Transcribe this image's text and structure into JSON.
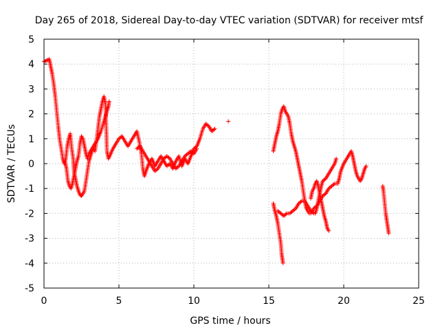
{
  "chart_data": {
    "type": "scatter",
    "title": "Day 265 of 2018, Sidereal Day-to-day VTEC variation (SDTVAR) for receiver mtsf",
    "xlabel": "GPS time / hours",
    "ylabel": "SDTVAR / TECUs",
    "xlim": [
      0,
      25
    ],
    "ylim": [
      -5,
      5
    ],
    "xticks": [
      0,
      5,
      10,
      15,
      20,
      25
    ],
    "yticks": [
      -5,
      -4,
      -3,
      -2,
      -1,
      0,
      1,
      2,
      3,
      4,
      5
    ],
    "grid": true,
    "marker": "plus",
    "series": [
      {
        "name": "mtsf",
        "color": "#ff0000",
        "segments": [
          [
            [
              0.0,
              4.1
            ],
            [
              0.2,
              4.15
            ],
            [
              0.35,
              4.2
            ],
            [
              0.45,
              3.9
            ],
            [
              0.55,
              3.6
            ],
            [
              0.65,
              3.2
            ],
            [
              0.75,
              2.7
            ],
            [
              0.85,
              2.1
            ],
            [
              0.95,
              1.5
            ],
            [
              1.05,
              0.95
            ],
            [
              1.15,
              0.6
            ],
            [
              1.25,
              0.2
            ],
            [
              1.35,
              0.0
            ],
            [
              1.45,
              0.2
            ],
            [
              1.55,
              0.7
            ],
            [
              1.65,
              1.0
            ],
            [
              1.75,
              1.2
            ],
            [
              1.85,
              0.6
            ],
            [
              1.95,
              0.2
            ],
            [
              2.0,
              -0.3
            ],
            [
              2.1,
              -0.6
            ],
            [
              2.2,
              -0.9
            ],
            [
              2.3,
              -1.1
            ],
            [
              2.4,
              -1.25
            ],
            [
              2.5,
              -1.3
            ],
            [
              2.6,
              -1.2
            ],
            [
              2.7,
              -1.1
            ],
            [
              2.8,
              -0.7
            ],
            [
              2.9,
              -0.3
            ],
            [
              3.0,
              0.1
            ],
            [
              3.1,
              0.3
            ],
            [
              3.2,
              0.5
            ],
            [
              3.3,
              0.6
            ],
            [
              3.4,
              0.5
            ],
            [
              3.5,
              0.9
            ],
            [
              3.6,
              1.4
            ],
            [
              3.7,
              1.9
            ],
            [
              3.8,
              2.2
            ],
            [
              3.9,
              2.5
            ],
            [
              4.0,
              2.7
            ],
            [
              4.1,
              2.4
            ],
            [
              4.15,
              1.5
            ],
            [
              4.2,
              0.5
            ],
            [
              4.3,
              0.2
            ],
            [
              4.45,
              0.4
            ],
            [
              4.6,
              0.6
            ],
            [
              4.8,
              0.8
            ],
            [
              5.0,
              1.0
            ],
            [
              5.2,
              1.1
            ],
            [
              5.4,
              0.9
            ],
            [
              5.6,
              0.7
            ],
            [
              5.8,
              0.9
            ],
            [
              6.0,
              1.1
            ],
            [
              6.2,
              1.3
            ],
            [
              6.35,
              0.9
            ],
            [
              6.5,
              0.4
            ],
            [
              6.6,
              -0.2
            ],
            [
              6.7,
              -0.5
            ],
            [
              6.8,
              -0.3
            ],
            [
              7.0,
              0.0
            ],
            [
              7.2,
              0.2
            ],
            [
              7.4,
              -0.1
            ],
            [
              7.6,
              0.1
            ],
            [
              7.8,
              0.3
            ],
            [
              8.0,
              0.1
            ],
            [
              8.2,
              -0.1
            ],
            [
              8.4,
              0.0
            ],
            [
              8.6,
              -0.2
            ],
            [
              8.8,
              0.1
            ],
            [
              9.0,
              0.3
            ],
            [
              9.2,
              -0.1
            ],
            [
              9.4,
              0.2
            ],
            [
              9.6,
              0.0
            ],
            [
              9.8,
              0.3
            ],
            [
              10.0,
              0.6
            ],
            [
              10.2,
              0.7
            ],
            [
              10.4,
              1.0
            ],
            [
              10.6,
              1.4
            ],
            [
              10.8,
              1.6
            ],
            [
              11.0,
              1.5
            ],
            [
              11.2,
              1.3
            ],
            [
              11.4,
              1.4
            ]
          ],
          [
            [
              1.4,
              0.1
            ],
            [
              1.5,
              -0.2
            ],
            [
              1.6,
              -0.7
            ],
            [
              1.7,
              -0.9
            ],
            [
              1.8,
              -1.0
            ],
            [
              1.9,
              -0.8
            ],
            [
              2.0,
              -0.5
            ],
            [
              2.1,
              -0.2
            ],
            [
              2.2,
              0.1
            ],
            [
              2.3,
              0.3
            ],
            [
              2.4,
              0.8
            ],
            [
              2.5,
              1.1
            ],
            [
              2.6,
              1.0
            ],
            [
              2.7,
              0.7
            ],
            [
              2.8,
              0.4
            ],
            [
              2.9,
              0.2
            ],
            [
              3.0,
              0.4
            ],
            [
              3.2,
              0.6
            ],
            [
              3.4,
              0.8
            ],
            [
              3.6,
              1.0
            ],
            [
              3.8,
              1.3
            ],
            [
              4.0,
              1.7
            ],
            [
              4.1,
              1.9
            ],
            [
              4.2,
              2.1
            ],
            [
              4.3,
              2.3
            ],
            [
              4.35,
              2.5
            ]
          ],
          [
            [
              6.2,
              0.6
            ],
            [
              6.4,
              0.7
            ],
            [
              6.6,
              0.5
            ],
            [
              6.8,
              0.3
            ],
            [
              7.0,
              0.1
            ],
            [
              7.2,
              -0.1
            ],
            [
              7.4,
              -0.3
            ],
            [
              7.6,
              -0.2
            ],
            [
              7.8,
              0.0
            ],
            [
              8.0,
              0.2
            ],
            [
              8.2,
              0.3
            ],
            [
              8.4,
              0.2
            ],
            [
              8.6,
              0.0
            ],
            [
              8.8,
              -0.2
            ],
            [
              9.0,
              -0.1
            ],
            [
              9.2,
              0.1
            ],
            [
              9.4,
              0.3
            ],
            [
              9.6,
              0.4
            ],
            [
              9.8,
              0.5
            ],
            [
              10.0,
              0.4
            ],
            [
              10.2,
              0.6
            ]
          ],
          [
            [
              12.3,
              1.7
            ]
          ],
          [
            [
              15.3,
              0.5
            ],
            [
              15.4,
              0.8
            ],
            [
              15.5,
              1.1
            ],
            [
              15.6,
              1.3
            ],
            [
              15.7,
              1.6
            ],
            [
              15.8,
              2.0
            ],
            [
              15.9,
              2.2
            ],
            [
              16.0,
              2.3
            ],
            [
              16.1,
              2.1
            ],
            [
              16.2,
              2.0
            ],
            [
              16.3,
              1.9
            ],
            [
              16.4,
              1.6
            ],
            [
              16.5,
              1.2
            ],
            [
              16.6,
              0.9
            ],
            [
              16.7,
              0.7
            ],
            [
              16.8,
              0.5
            ],
            [
              16.9,
              0.2
            ],
            [
              17.0,
              -0.1
            ],
            [
              17.1,
              -0.4
            ],
            [
              17.2,
              -0.7
            ],
            [
              17.3,
              -1.1
            ],
            [
              17.4,
              -1.5
            ],
            [
              17.5,
              -1.8
            ],
            [
              17.6,
              -1.9
            ],
            [
              17.7,
              -2.0
            ],
            [
              17.8,
              -2.0
            ],
            [
              17.9,
              -1.9
            ],
            [
              18.0,
              -1.8
            ],
            [
              18.2,
              -1.7
            ],
            [
              18.4,
              -1.5
            ],
            [
              18.6,
              -1.3
            ],
            [
              18.8,
              -1.2
            ],
            [
              19.0,
              -1.0
            ],
            [
              19.2,
              -0.9
            ],
            [
              19.4,
              -0.8
            ],
            [
              19.6,
              -0.8
            ]
          ],
          [
            [
              15.3,
              -1.6
            ],
            [
              15.4,
              -1.9
            ],
            [
              15.5,
              -2.1
            ],
            [
              15.6,
              -2.4
            ],
            [
              15.7,
              -2.8
            ],
            [
              15.8,
              -3.2
            ],
            [
              15.85,
              -3.6
            ],
            [
              15.9,
              -3.8
            ],
            [
              15.95,
              -4.0
            ]
          ],
          [
            [
              15.6,
              -1.9
            ],
            [
              15.8,
              -2.0
            ],
            [
              16.0,
              -2.1
            ],
            [
              16.2,
              -2.0
            ],
            [
              16.4,
              -2.0
            ],
            [
              16.6,
              -1.9
            ],
            [
              16.8,
              -1.8
            ],
            [
              17.0,
              -1.6
            ],
            [
              17.2,
              -1.5
            ],
            [
              17.4,
              -1.5
            ],
            [
              17.6,
              -1.7
            ],
            [
              17.8,
              -1.9
            ],
            [
              18.0,
              -2.0
            ],
            [
              18.1,
              -2.0
            ],
            [
              18.2,
              -1.8
            ],
            [
              18.3,
              -1.5
            ],
            [
              18.4,
              -1.2
            ],
            [
              18.5,
              -0.9
            ],
            [
              18.6,
              -0.7
            ],
            [
              18.8,
              -0.6
            ],
            [
              19.0,
              -0.4
            ],
            [
              19.2,
              -0.2
            ],
            [
              19.4,
              0.0
            ],
            [
              19.5,
              0.2
            ]
          ],
          [
            [
              17.8,
              -1.4
            ],
            [
              17.9,
              -1.1
            ],
            [
              18.0,
              -1.0
            ],
            [
              18.1,
              -0.8
            ],
            [
              18.2,
              -0.7
            ],
            [
              18.3,
              -0.9
            ],
            [
              18.4,
              -1.2
            ],
            [
              18.5,
              -1.5
            ],
            [
              18.6,
              -1.8
            ],
            [
              18.7,
              -2.1
            ],
            [
              18.8,
              -2.3
            ],
            [
              18.9,
              -2.6
            ],
            [
              19.0,
              -2.7
            ]
          ],
          [
            [
              19.6,
              -0.8
            ],
            [
              19.7,
              -0.6
            ],
            [
              19.8,
              -0.3
            ],
            [
              20.0,
              0.0
            ],
            [
              20.2,
              0.2
            ],
            [
              20.4,
              0.4
            ],
            [
              20.5,
              0.5
            ],
            [
              20.6,
              0.3
            ],
            [
              20.7,
              0.0
            ],
            [
              20.8,
              -0.3
            ],
            [
              20.9,
              -0.5
            ],
            [
              21.0,
              -0.6
            ],
            [
              21.1,
              -0.7
            ],
            [
              21.2,
              -0.6
            ],
            [
              21.3,
              -0.4
            ],
            [
              21.4,
              -0.2
            ],
            [
              21.5,
              -0.1
            ]
          ],
          [
            [
              22.6,
              -0.9
            ],
            [
              22.65,
              -1.1
            ],
            [
              22.7,
              -1.4
            ],
            [
              22.75,
              -1.7
            ],
            [
              22.8,
              -2.0
            ],
            [
              22.85,
              -2.2
            ],
            [
              22.9,
              -2.4
            ],
            [
              22.95,
              -2.6
            ],
            [
              23.0,
              -2.8
            ]
          ]
        ]
      }
    ]
  }
}
